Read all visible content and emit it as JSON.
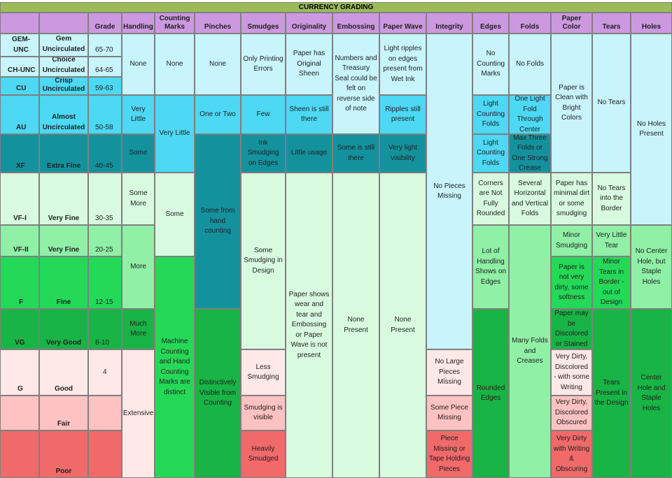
{
  "title": "CURRENCY GRADING",
  "headers": [
    "Grade",
    "Handling",
    "Counting Marks",
    "Pinches",
    "Smudges",
    "Originality",
    "Embossing",
    "Paper Wave",
    "Integrity",
    "Edges",
    "Folds",
    "Paper Color",
    "Tears",
    "Holes"
  ],
  "grades": {
    "gem_unc": {
      "label": "GEM-UNC",
      "desc": "Gem Uncirculated",
      "range": "65-70"
    },
    "ch_unc": {
      "label": "CH-UNC",
      "desc": "Choice Uncirculated",
      "range": "64-65"
    },
    "cu": {
      "label": "CU",
      "desc": "Crisp Uncirculated",
      "range": "59-63"
    },
    "au": {
      "label": "AU",
      "desc": "Almost Uncirculated",
      "range": "50-58"
    },
    "xf": {
      "label": "XF",
      "desc": "Extra Fine",
      "range": "40-45"
    },
    "vf1": {
      "label": "VF-I",
      "desc": "Very Fine",
      "range": "30-35"
    },
    "vf2": {
      "label": "VF-II",
      "desc": "Very Fine",
      "range": "20-25"
    },
    "f": {
      "label": "F",
      "desc": "Fine",
      "range": "12-15"
    },
    "vg": {
      "label": "VG",
      "desc": "Very Good",
      "range": "8-10"
    },
    "g": {
      "label": "G",
      "desc": "Good",
      "range": "4"
    },
    "fair": {
      "label": "",
      "desc": "Fair",
      "range": ""
    },
    "poor": {
      "label": "",
      "desc": "Poor",
      "range": ""
    }
  },
  "cells": {
    "handling_none": "None",
    "handling_very_little": "Very Little",
    "handling_some": "Some",
    "handling_some_more": "Some More",
    "handling_more": "More",
    "handling_much_more": "Much More",
    "handling_extensive": "Extensive",
    "counting_none": "None",
    "counting_very_little": "Very Little",
    "counting_some": "Some",
    "counting_machine": "Machine Counting and Hand Counting Marks are distinct",
    "pinches_none": "None",
    "pinches_one_or_two": "One or Two",
    "pinches_hand": "Some from hand counting",
    "pinches_distinct": "Distinctively Visible from Counting",
    "smudges_printing": "Only Printing Errors",
    "smudges_few": "Few",
    "smudges_ink": "Ink Smudging on Edges",
    "smudges_design": "Some Smudging in Design",
    "smudges_less": "Less Smudging",
    "smudges_visible": "Smudging is visible",
    "smudges_heavy": "Heavily Smudged",
    "orig_sheen": "Paper has Original Sheen",
    "orig_still": "Sheen is still there",
    "orig_little": "Little usage",
    "orig_wear": "Paper shows wear and tear and Embossing or Paper Wave is not present",
    "emboss_felt": "Numbers and Treasury Seal could be felt on reverse side of note",
    "emboss_some": "Some is still there",
    "emboss_none": "None Present",
    "wave_ripples": "Light ripples on edges present from Wet Ink",
    "wave_still": "Ripples still present",
    "wave_very_light": "Very light visibility",
    "wave_none": "None Present",
    "integrity_no_pieces": "No Pieces Missing",
    "integrity_no_large": "No Large Pieces Missing",
    "integrity_some_piece": "Some Piece Missing",
    "integrity_piece_tape": "Piece Missing or Tape Holding Pieces",
    "edges_no_counting": "No Counting Marks",
    "edges_light_au": "Light Counting Folds",
    "edges_light_xf": "Light Counting Folds",
    "edges_corners": "Corners are Not Fully Rounded",
    "edges_handling": "Lot of Handling Shows on Edges",
    "edges_rounded": "Rounded Edges",
    "folds_none": "No Folds",
    "folds_one_light": "One Light Fold Through Center",
    "folds_max_three": "Max Three Folds or One Strong Crease",
    "folds_several": "Several Horizontal and Vertical Folds",
    "folds_many": "Many Folds and Creases",
    "color_clean": "Paper is Clean with Bright Colors",
    "color_minimal": "Paper has minimal dirt or some smudging",
    "color_minor": "Minor Smudging",
    "color_not_very": "Paper is not very dirty, some softness",
    "color_discolored": "Paper may be Discolored or Stained",
    "color_very_dirty_writing": "Very Dirty, Discolored - with some Writing",
    "color_obscured": "Very Dirty, Discolored Obscured",
    "color_obscuring": "Very Dirty with Writing & Obscuring",
    "tears_none": "No Tears",
    "tears_border": "No Tears into the Border",
    "tears_very_little": "Very Little Tear",
    "tears_minor_border": "Minor Tears in Border - out of Design",
    "tears_design": "Tears Present in the Design",
    "holes_none": "No Holes Present",
    "holes_no_center": "No Center Hole, but Staple Holes",
    "holes_center": "Center Hole and Staple Holes"
  },
  "colors": {
    "title": "#9bbb59",
    "header": "#cc99e0",
    "light_cyan": "#c8f4fc",
    "cyan": "#4dd8f4",
    "teal": "#13929e",
    "mint": "#d8fbe0",
    "light_green": "#8ff0a6",
    "green": "#24d957",
    "dark_green": "#18b446",
    "pale_pink": "#ffe8e8",
    "pink": "#ffc2c2",
    "red": "#f06a6a"
  }
}
